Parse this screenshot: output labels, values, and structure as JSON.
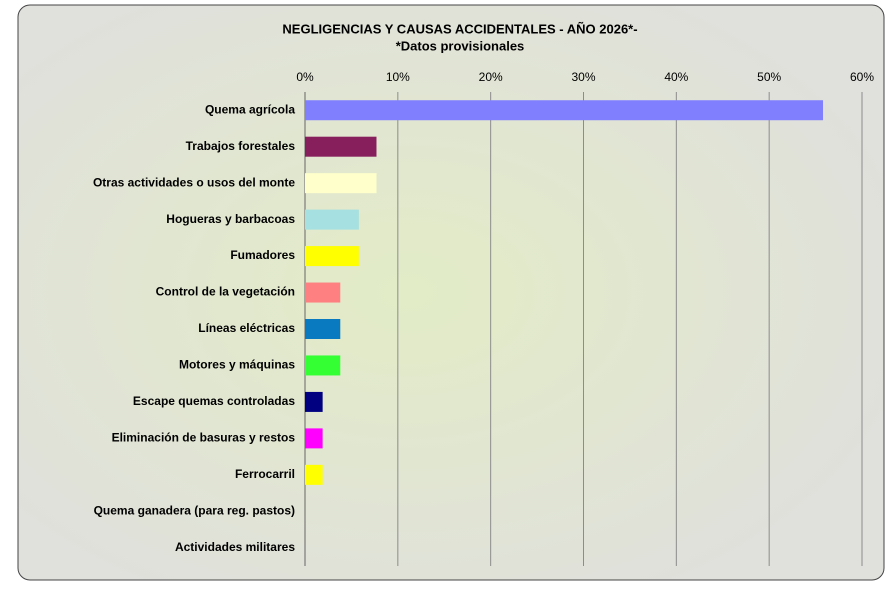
{
  "chart_data": {
    "type": "barh",
    "title": "NEGLIGENCIAS Y CAUSAS ACCIDENTALES - AÑO 2026*-",
    "subtitle": "*Datos provisionales",
    "categories": [
      "Quema agrícola",
      "Trabajos forestales",
      "Otras actividades o usos del monte",
      "Hogueras y barbacoas",
      "Fumadores",
      "Control de la vegetación",
      "Líneas eléctricas",
      "Motores y máquinas",
      "Escape quemas controladas",
      "Eliminación de basuras y restos",
      "Ferrocarril",
      "Quema ganadera (para reg. pastos)",
      "Actividades militares"
    ],
    "values": [
      55.8,
      7.7,
      7.7,
      5.8,
      5.8,
      3.8,
      3.8,
      3.8,
      1.9,
      1.9,
      1.9,
      0,
      0
    ],
    "colors": [
      "#8080ff",
      "#861f5c",
      "#ffffcc",
      "#a6e0e0",
      "#ffff00",
      "#ff8080",
      "#0a7ac0",
      "#33ff33",
      "#000080",
      "#ff00ff",
      "#ffff00",
      "#ff0000",
      "#008080"
    ],
    "xlim": [
      0,
      60
    ],
    "xticks": [
      {
        "value": 0,
        "label": "0%"
      },
      {
        "value": 10,
        "label": "10%"
      },
      {
        "value": 20,
        "label": "20%"
      },
      {
        "value": 30,
        "label": "30%"
      },
      {
        "value": 40,
        "label": "40%"
      },
      {
        "value": 50,
        "label": "50%"
      },
      {
        "value": 60,
        "label": "60%"
      }
    ],
    "grid": true
  }
}
